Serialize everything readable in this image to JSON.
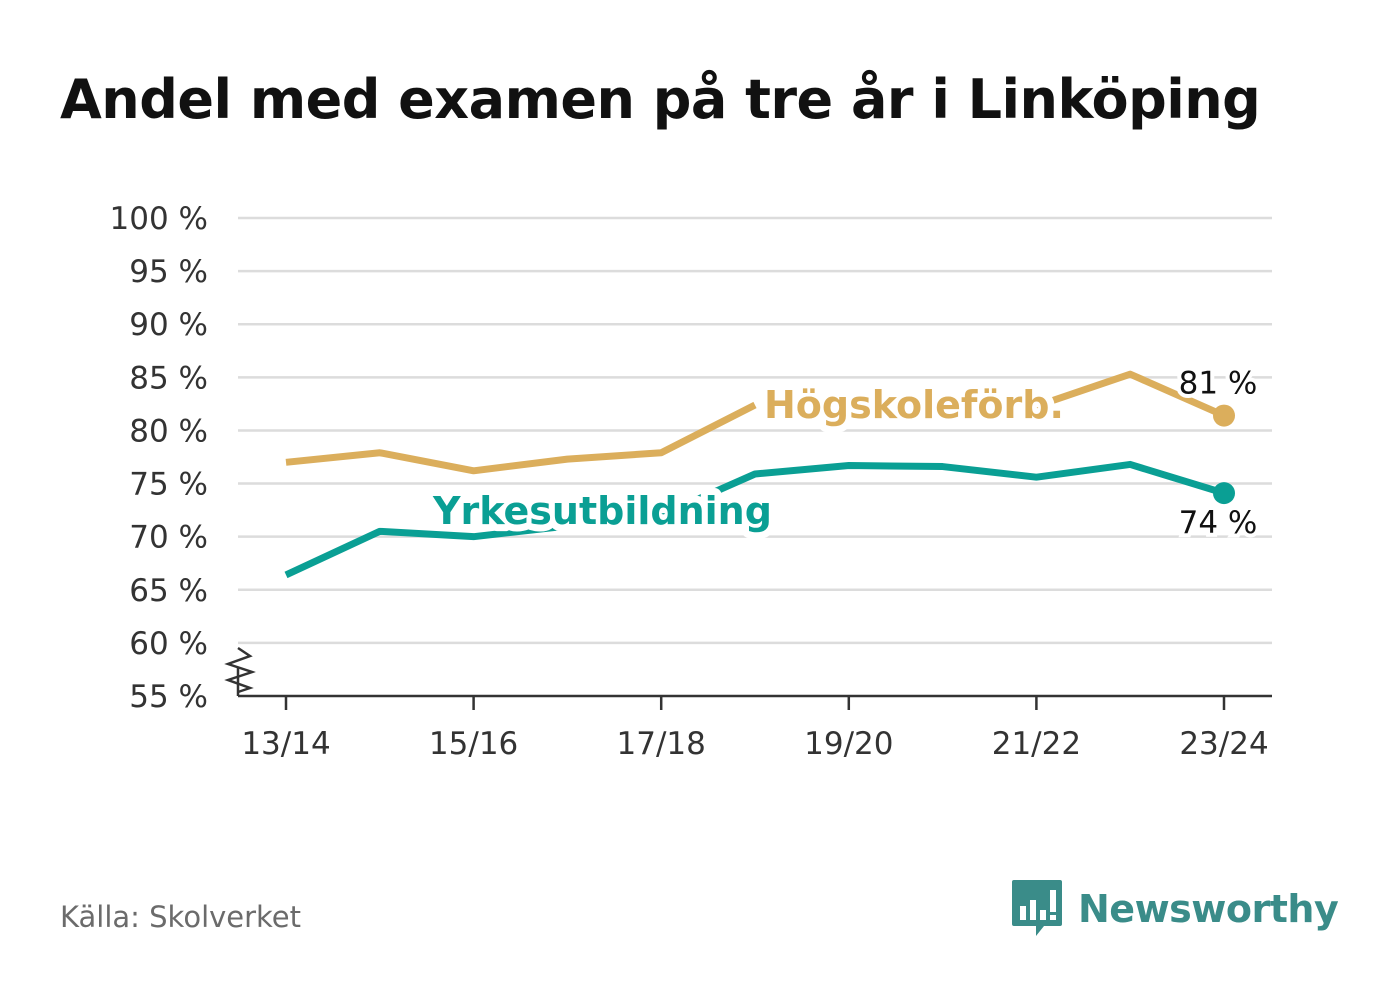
{
  "title": "Andel med examen på tre år i Linköping",
  "source": "Källa: Skolverket",
  "brand": {
    "name": "Newsworthy",
    "icon": "bar-chart-bubble-icon",
    "color": "#3a8c89"
  },
  "chart_data": {
    "type": "line",
    "title": "Andel med examen på tre år i Linköping",
    "xlabel": "",
    "ylabel": "",
    "x": [
      "13/14",
      "14/15",
      "15/16",
      "16/17",
      "17/18",
      "18/19",
      "19/20",
      "20/21",
      "21/22",
      "22/23",
      "23/24"
    ],
    "x_tick_labels": [
      "13/14",
      "15/16",
      "17/18",
      "19/20",
      "21/22",
      "23/24"
    ],
    "ylim": [
      55,
      100
    ],
    "y_ticks": [
      55,
      60,
      65,
      70,
      75,
      80,
      85,
      90,
      95,
      100
    ],
    "y_tick_labels": [
      "55 %",
      "60 %",
      "65 %",
      "70 %",
      "75 %",
      "80 %",
      "85 %",
      "90 %",
      "95 %",
      "100 %"
    ],
    "axis_break": true,
    "grid": true,
    "series": [
      {
        "name": "Högskoleförb.",
        "color": "#dbae5c",
        "values": [
          77.0,
          77.9,
          76.2,
          77.3,
          77.9,
          82.4,
          null,
          null,
          82.3,
          85.3,
          81.4
        ],
        "end_label": "81 %"
      },
      {
        "name": "Yrkesutbildning",
        "color": "#0a9f94",
        "values": [
          66.4,
          70.5,
          70.0,
          71.0,
          72.0,
          75.9,
          76.7,
          76.6,
          75.6,
          76.8,
          74.1
        ],
        "end_label": "74 %"
      }
    ]
  }
}
